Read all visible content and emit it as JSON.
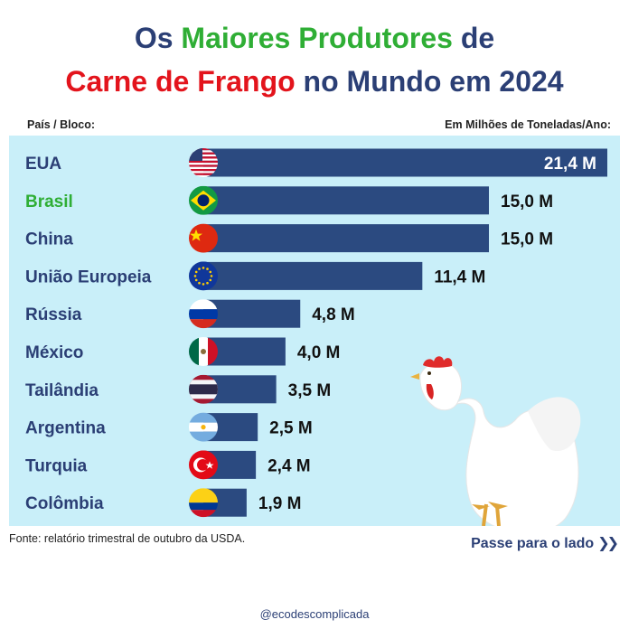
{
  "title": {
    "line1": {
      "part1": "Os ",
      "part2": "Maiores Produtores",
      "part3": " de"
    },
    "line2": {
      "part1": "Carne de Frango",
      "part2": " no Mundo em 2024"
    }
  },
  "header": {
    "left": "País / Bloco:",
    "right": "Em Milhões de Toneladas/Ano:"
  },
  "footer": {
    "source": "Fonte: relatório trimestral de outubro da USDA.",
    "swipe": "Passe para o lado",
    "swipe_icon": "double-chevron-right-icon",
    "handle": "@ecodescomplicada"
  },
  "colors": {
    "title_blue": "#2b3f75",
    "title_green": "#2fae35",
    "title_red": "#e3141c",
    "bar": "#2b4a80",
    "panel": "#c9eff9",
    "brasil_label": "#2fae35"
  },
  "chart_data": {
    "type": "bar",
    "orientation": "horizontal",
    "categories": [
      "EUA",
      "Brasil",
      "China",
      "União Europeia",
      "Rússia",
      "México",
      "Tailândia",
      "Argentina",
      "Turquia",
      "Colômbia"
    ],
    "values": [
      21.4,
      15.0,
      15.0,
      11.4,
      4.8,
      4.0,
      3.5,
      2.5,
      2.4,
      1.9
    ],
    "value_labels": [
      "21,4 M",
      "15,0 M",
      "15,0 M",
      "11,4 M",
      "4,8 M",
      "4,0 M",
      "3,5 M",
      "2,5 M",
      "2,4 M",
      "1,9 M"
    ],
    "flags": [
      "usa-flag-icon",
      "brazil-flag-icon",
      "china-flag-icon",
      "eu-flag-icon",
      "russia-flag-icon",
      "mexico-flag-icon",
      "thailand-flag-icon",
      "argentina-flag-icon",
      "turkey-flag-icon",
      "colombia-flag-icon"
    ],
    "illustration": "chicken-illustration",
    "grid": false
  }
}
